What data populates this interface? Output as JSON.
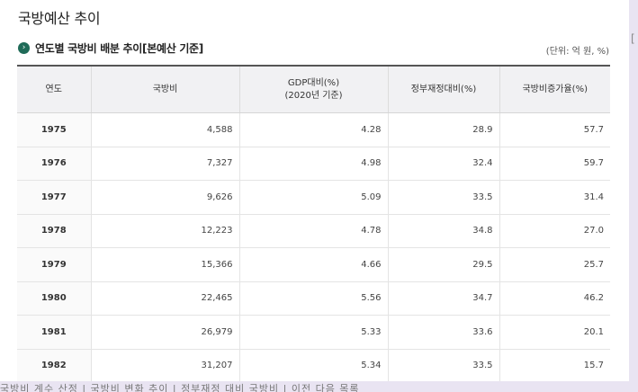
{
  "page": {
    "title": "국방예산 추이"
  },
  "section": {
    "title": "연도별 국방비 배분 추이[본예산 기준]",
    "unit": "(단위: 억 원, %)",
    "bullet_icon": "chevron-right-icon",
    "accent_color": "#1f6b58"
  },
  "table": {
    "headers": {
      "year": "연도",
      "budget": "국방비",
      "gdp_line1": "GDP대비(%)",
      "gdp_line2": "(2020년 기준)",
      "gov": "정부재정대비(%)",
      "growth": "국방비증가율(%)"
    },
    "rows": [
      {
        "year": "1975",
        "budget": "4,588",
        "gdp": "4.28",
        "gov": "28.9",
        "growth": "57.7"
      },
      {
        "year": "1976",
        "budget": "7,327",
        "gdp": "4.98",
        "gov": "32.4",
        "growth": "59.7"
      },
      {
        "year": "1977",
        "budget": "9,626",
        "gdp": "5.09",
        "gov": "33.5",
        "growth": "31.4"
      },
      {
        "year": "1978",
        "budget": "12,223",
        "gdp": "4.78",
        "gov": "34.8",
        "growth": "27.0"
      },
      {
        "year": "1979",
        "budget": "15,366",
        "gdp": "4.66",
        "gov": "29.5",
        "growth": "25.7"
      },
      {
        "year": "1980",
        "budget": "22,465",
        "gdp": "5.56",
        "gov": "34.7",
        "growth": "46.2"
      },
      {
        "year": "1981",
        "budget": "26,979",
        "gdp": "5.33",
        "gov": "33.6",
        "growth": "20.1"
      },
      {
        "year": "1982",
        "budget": "31,207",
        "gdp": "5.34",
        "gov": "33.5",
        "growth": "15.7"
      }
    ]
  },
  "background": {
    "right_fragment": "[",
    "bottom_text": "국방비 계수 산정   |   국방비 변화 추이   |   정부재정 대비 국방비   |   이전 다음 목록"
  }
}
